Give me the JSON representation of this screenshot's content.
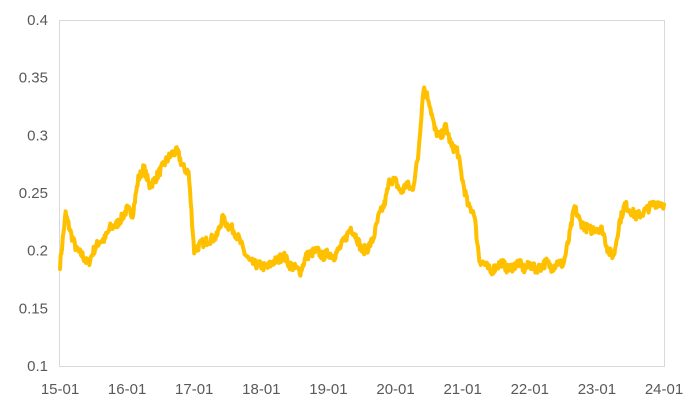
{
  "chart_data": {
    "type": "line",
    "title": "",
    "xlabel": "",
    "ylabel": "",
    "ylim": [
      0.1,
      0.4
    ],
    "yticks": [
      "0.1",
      "0.15",
      "0.2",
      "0.25",
      "0.3",
      "0.35",
      "0.4"
    ],
    "xlim": [
      "2015-01",
      "2024-01"
    ],
    "xticks": [
      {
        "date": "2015-01",
        "label": "15-01"
      },
      {
        "date": "2016-01",
        "label": "16-01"
      },
      {
        "date": "2017-01",
        "label": "17-01"
      },
      {
        "date": "2018-01",
        "label": "18-01"
      },
      {
        "date": "2019-01",
        "label": "19-01"
      },
      {
        "date": "2020-01",
        "label": "20-01"
      },
      {
        "date": "2021-01",
        "label": "21-01"
      },
      {
        "date": "2022-01",
        "label": "22-01"
      },
      {
        "date": "2023-01",
        "label": "23-01"
      },
      {
        "date": "2024-01",
        "label": "24-01"
      }
    ],
    "grid": false,
    "legend": "none",
    "series": [
      {
        "color": "#FFC000",
        "x": [
          "2015-01",
          "2015-02",
          "2015-03",
          "2015-04",
          "2015-05",
          "2015-06",
          "2015-07",
          "2015-08",
          "2015-09",
          "2015-10",
          "2015-11",
          "2015-12",
          "2016-01",
          "2016-02",
          "2016-03",
          "2016-04",
          "2016-05",
          "2016-06",
          "2016-07",
          "2016-08",
          "2016-09",
          "2016-10",
          "2016-11",
          "2016-12",
          "2017-01",
          "2017-02",
          "2017-03",
          "2017-04",
          "2017-05",
          "2017-06",
          "2017-07",
          "2017-08",
          "2017-09",
          "2017-10",
          "2017-11",
          "2017-12",
          "2018-01",
          "2018-02",
          "2018-03",
          "2018-04",
          "2018-05",
          "2018-06",
          "2018-07",
          "2018-08",
          "2018-09",
          "2018-10",
          "2018-11",
          "2018-12",
          "2019-01",
          "2019-02",
          "2019-03",
          "2019-04",
          "2019-05",
          "2019-06",
          "2019-07",
          "2019-08",
          "2019-09",
          "2019-10",
          "2019-11",
          "2019-12",
          "2020-01",
          "2020-02",
          "2020-03",
          "2020-04",
          "2020-05",
          "2020-06",
          "2020-07",
          "2020-08",
          "2020-09",
          "2020-10",
          "2020-11",
          "2020-12",
          "2021-01",
          "2021-02",
          "2021-03",
          "2021-04",
          "2021-05",
          "2021-06",
          "2021-07",
          "2021-08",
          "2021-09",
          "2021-10",
          "2021-11",
          "2021-12",
          "2022-01",
          "2022-02",
          "2022-03",
          "2022-04",
          "2022-05",
          "2022-06",
          "2022-07",
          "2022-08",
          "2022-09",
          "2022-10",
          "2022-11",
          "2022-12",
          "2023-01",
          "2023-02",
          "2023-03",
          "2023-04",
          "2023-05",
          "2023-06",
          "2023-07",
          "2023-08",
          "2023-09",
          "2023-10",
          "2023-11",
          "2023-12",
          "2024-01"
        ],
        "values": [
          0.188,
          0.232,
          0.214,
          0.2,
          0.196,
          0.188,
          0.2,
          0.208,
          0.21,
          0.22,
          0.222,
          0.228,
          0.236,
          0.232,
          0.262,
          0.272,
          0.256,
          0.262,
          0.27,
          0.278,
          0.284,
          0.286,
          0.272,
          0.268,
          0.2,
          0.205,
          0.208,
          0.21,
          0.212,
          0.228,
          0.222,
          0.218,
          0.21,
          0.198,
          0.19,
          0.188,
          0.187,
          0.185,
          0.19,
          0.192,
          0.196,
          0.188,
          0.185,
          0.182,
          0.195,
          0.198,
          0.2,
          0.195,
          0.198,
          0.195,
          0.202,
          0.21,
          0.22,
          0.212,
          0.2,
          0.202,
          0.21,
          0.23,
          0.24,
          0.262,
          0.26,
          0.25,
          0.258,
          0.252,
          0.28,
          0.342,
          0.33,
          0.305,
          0.298,
          0.308,
          0.29,
          0.288,
          0.26,
          0.238,
          0.234,
          0.192,
          0.188,
          0.182,
          0.186,
          0.19,
          0.184,
          0.186,
          0.19,
          0.184,
          0.188,
          0.184,
          0.186,
          0.19,
          0.185,
          0.19,
          0.188,
          0.21,
          0.238,
          0.225,
          0.22,
          0.218,
          0.22,
          0.218,
          0.2,
          0.195,
          0.224,
          0.24,
          0.235,
          0.23,
          0.232,
          0.236,
          0.24,
          0.242,
          0.24
        ]
      }
    ]
  }
}
